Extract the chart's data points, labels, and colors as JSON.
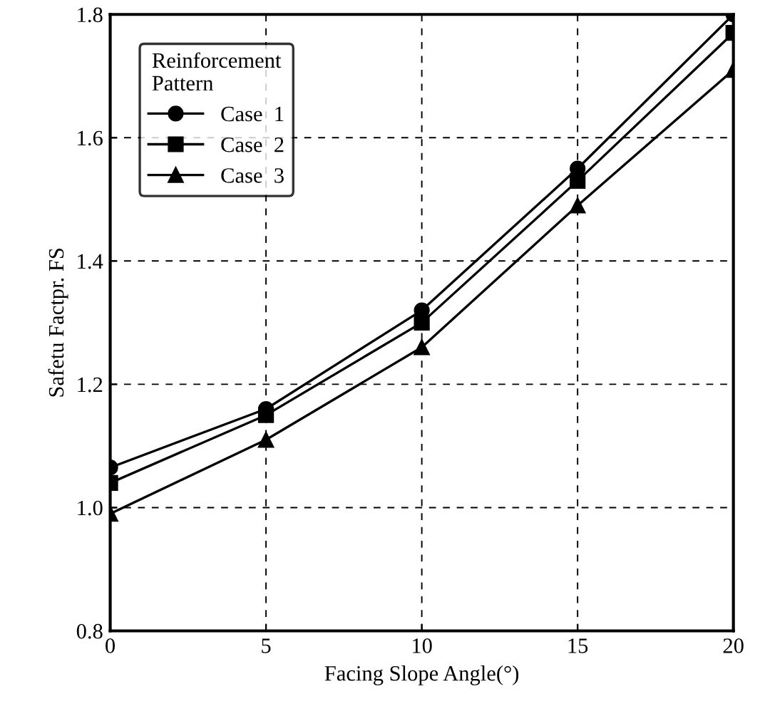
{
  "chart_data": {
    "type": "line",
    "xlabel": "Facing Slope Angle(°)",
    "ylabel": "Safetu Factpr. FS",
    "legend_title": "Reinforcement\nPattern",
    "x": [
      0,
      5,
      10,
      15,
      20
    ],
    "xlim": [
      0,
      20
    ],
    "xticks": [
      0,
      5,
      10,
      15,
      20
    ],
    "ylim": [
      0.8,
      1.8
    ],
    "yticks": [
      {
        "value": 0.8,
        "label": "0.8"
      },
      {
        "value": 1.0,
        "label": "1.0"
      },
      {
        "value": 1.2,
        "label": "1.2"
      },
      {
        "value": 1.4,
        "label": "1.4"
      },
      {
        "value": 1.6,
        "label": "1.6"
      },
      {
        "value": 1.8,
        "label": "1.8"
      }
    ],
    "grid": true,
    "legend": "top left",
    "line_style": "solid",
    "series": [
      {
        "name": "Case  1",
        "color": "#000000",
        "marker": "circle",
        "values": [
          1.065,
          1.16,
          1.32,
          1.55,
          1.8
        ]
      },
      {
        "name": "Case  2",
        "color": "#000000",
        "marker": "square",
        "values": [
          1.04,
          1.15,
          1.3,
          1.53,
          1.77
        ]
      },
      {
        "name": "Case  3",
        "color": "#000000",
        "marker": "triangle",
        "values": [
          0.99,
          1.11,
          1.26,
          1.49,
          1.71
        ]
      }
    ]
  }
}
